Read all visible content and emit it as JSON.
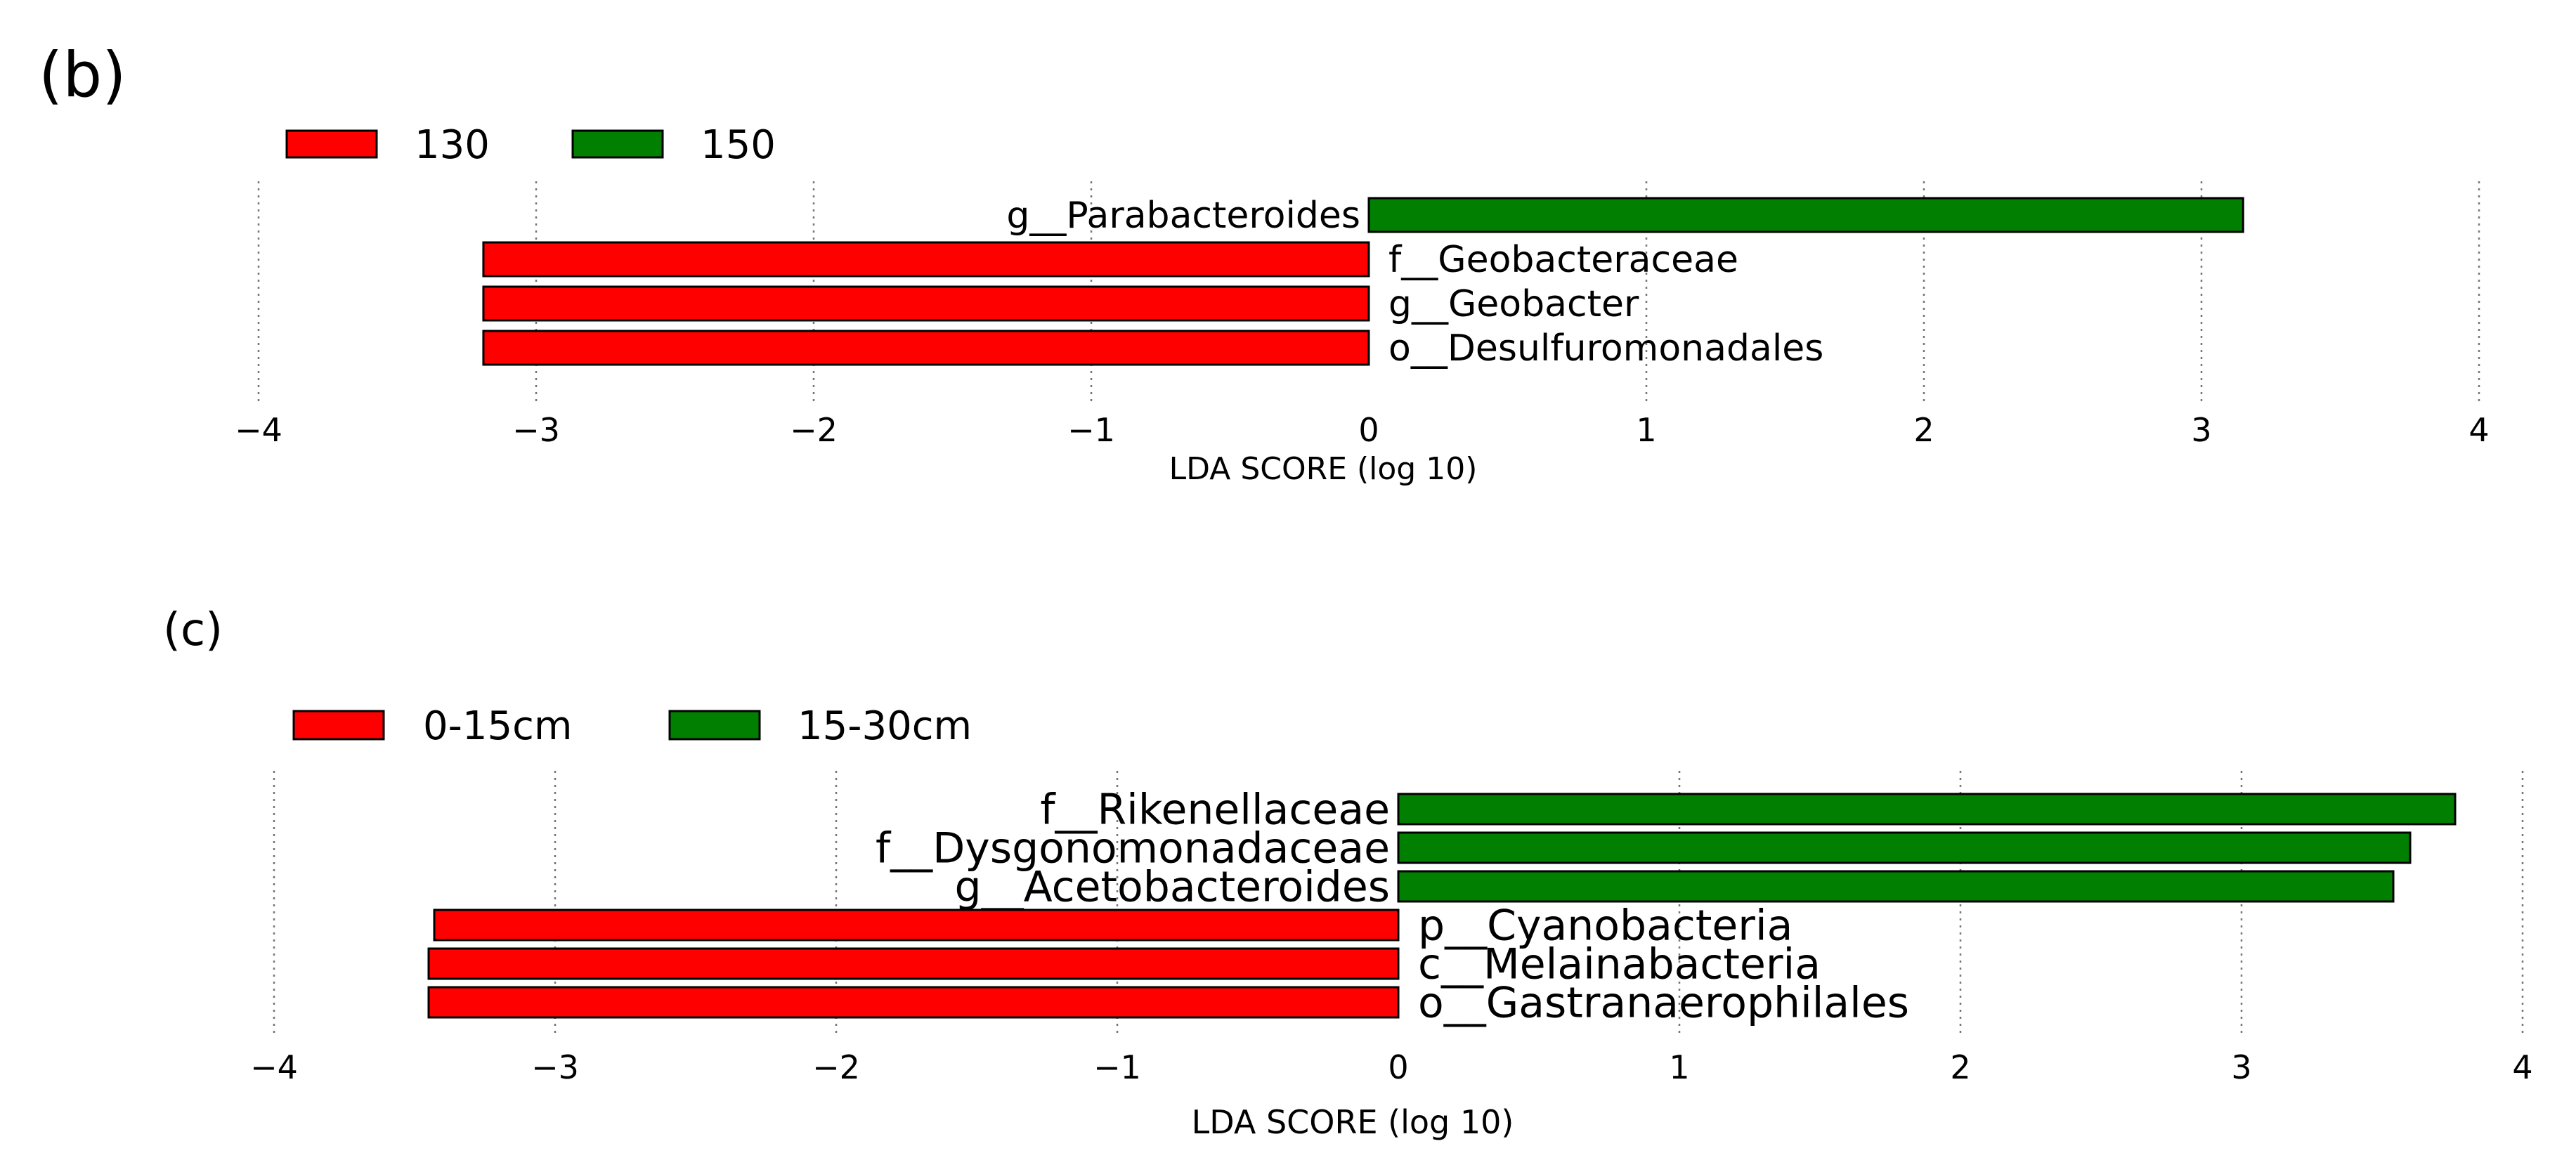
{
  "chart_data": [
    {
      "type": "bar",
      "orientation": "horizontal",
      "panel_label": "(b)",
      "title": "",
      "xlabel": "LDA SCORE (log 10)",
      "ylabel": "",
      "xlim": [
        -4,
        4
      ],
      "xticks": [
        "−4",
        "−3",
        "−2",
        "−1",
        "0",
        "1",
        "2",
        "3",
        "4"
      ],
      "grid": true,
      "legend_position": "top-left",
      "legend": [
        {
          "label": "130",
          "color": "#ff0000"
        },
        {
          "label": "150",
          "color": "#007f00"
        }
      ],
      "categories": [
        "g__Parabacteroides",
        "f__Geobacteraceae",
        "g__Geobacter",
        "o__Desulfuromonadales"
      ],
      "values": [
        3.15,
        -3.19,
        -3.19,
        -3.19
      ],
      "groups": [
        "150",
        "130",
        "130",
        "130"
      ]
    },
    {
      "type": "bar",
      "orientation": "horizontal",
      "panel_label": "(c)",
      "title": "",
      "xlabel": "LDA SCORE (log 10)",
      "ylabel": "",
      "xlim": [
        -4,
        4
      ],
      "xticks": [
        "−4",
        "−3",
        "−2",
        "−1",
        "0",
        "1",
        "2",
        "3",
        "4"
      ],
      "grid": true,
      "legend_position": "top-left",
      "legend": [
        {
          "label": "0-15cm",
          "color": "#ff0000"
        },
        {
          "label": "15-30cm",
          "color": "#007f00"
        }
      ],
      "categories": [
        "f__Rikenellaceae",
        "f__Dysgonomonadaceae",
        "g__Acetobacteroides",
        "p__Cyanobacteria",
        "c__Melainabacteria",
        "o__Gastranaerophilales"
      ],
      "values": [
        3.76,
        3.6,
        3.54,
        -3.43,
        -3.45,
        -3.45
      ],
      "groups": [
        "15-30cm",
        "15-30cm",
        "15-30cm",
        "0-15cm",
        "0-15cm",
        "0-15cm"
      ]
    }
  ]
}
